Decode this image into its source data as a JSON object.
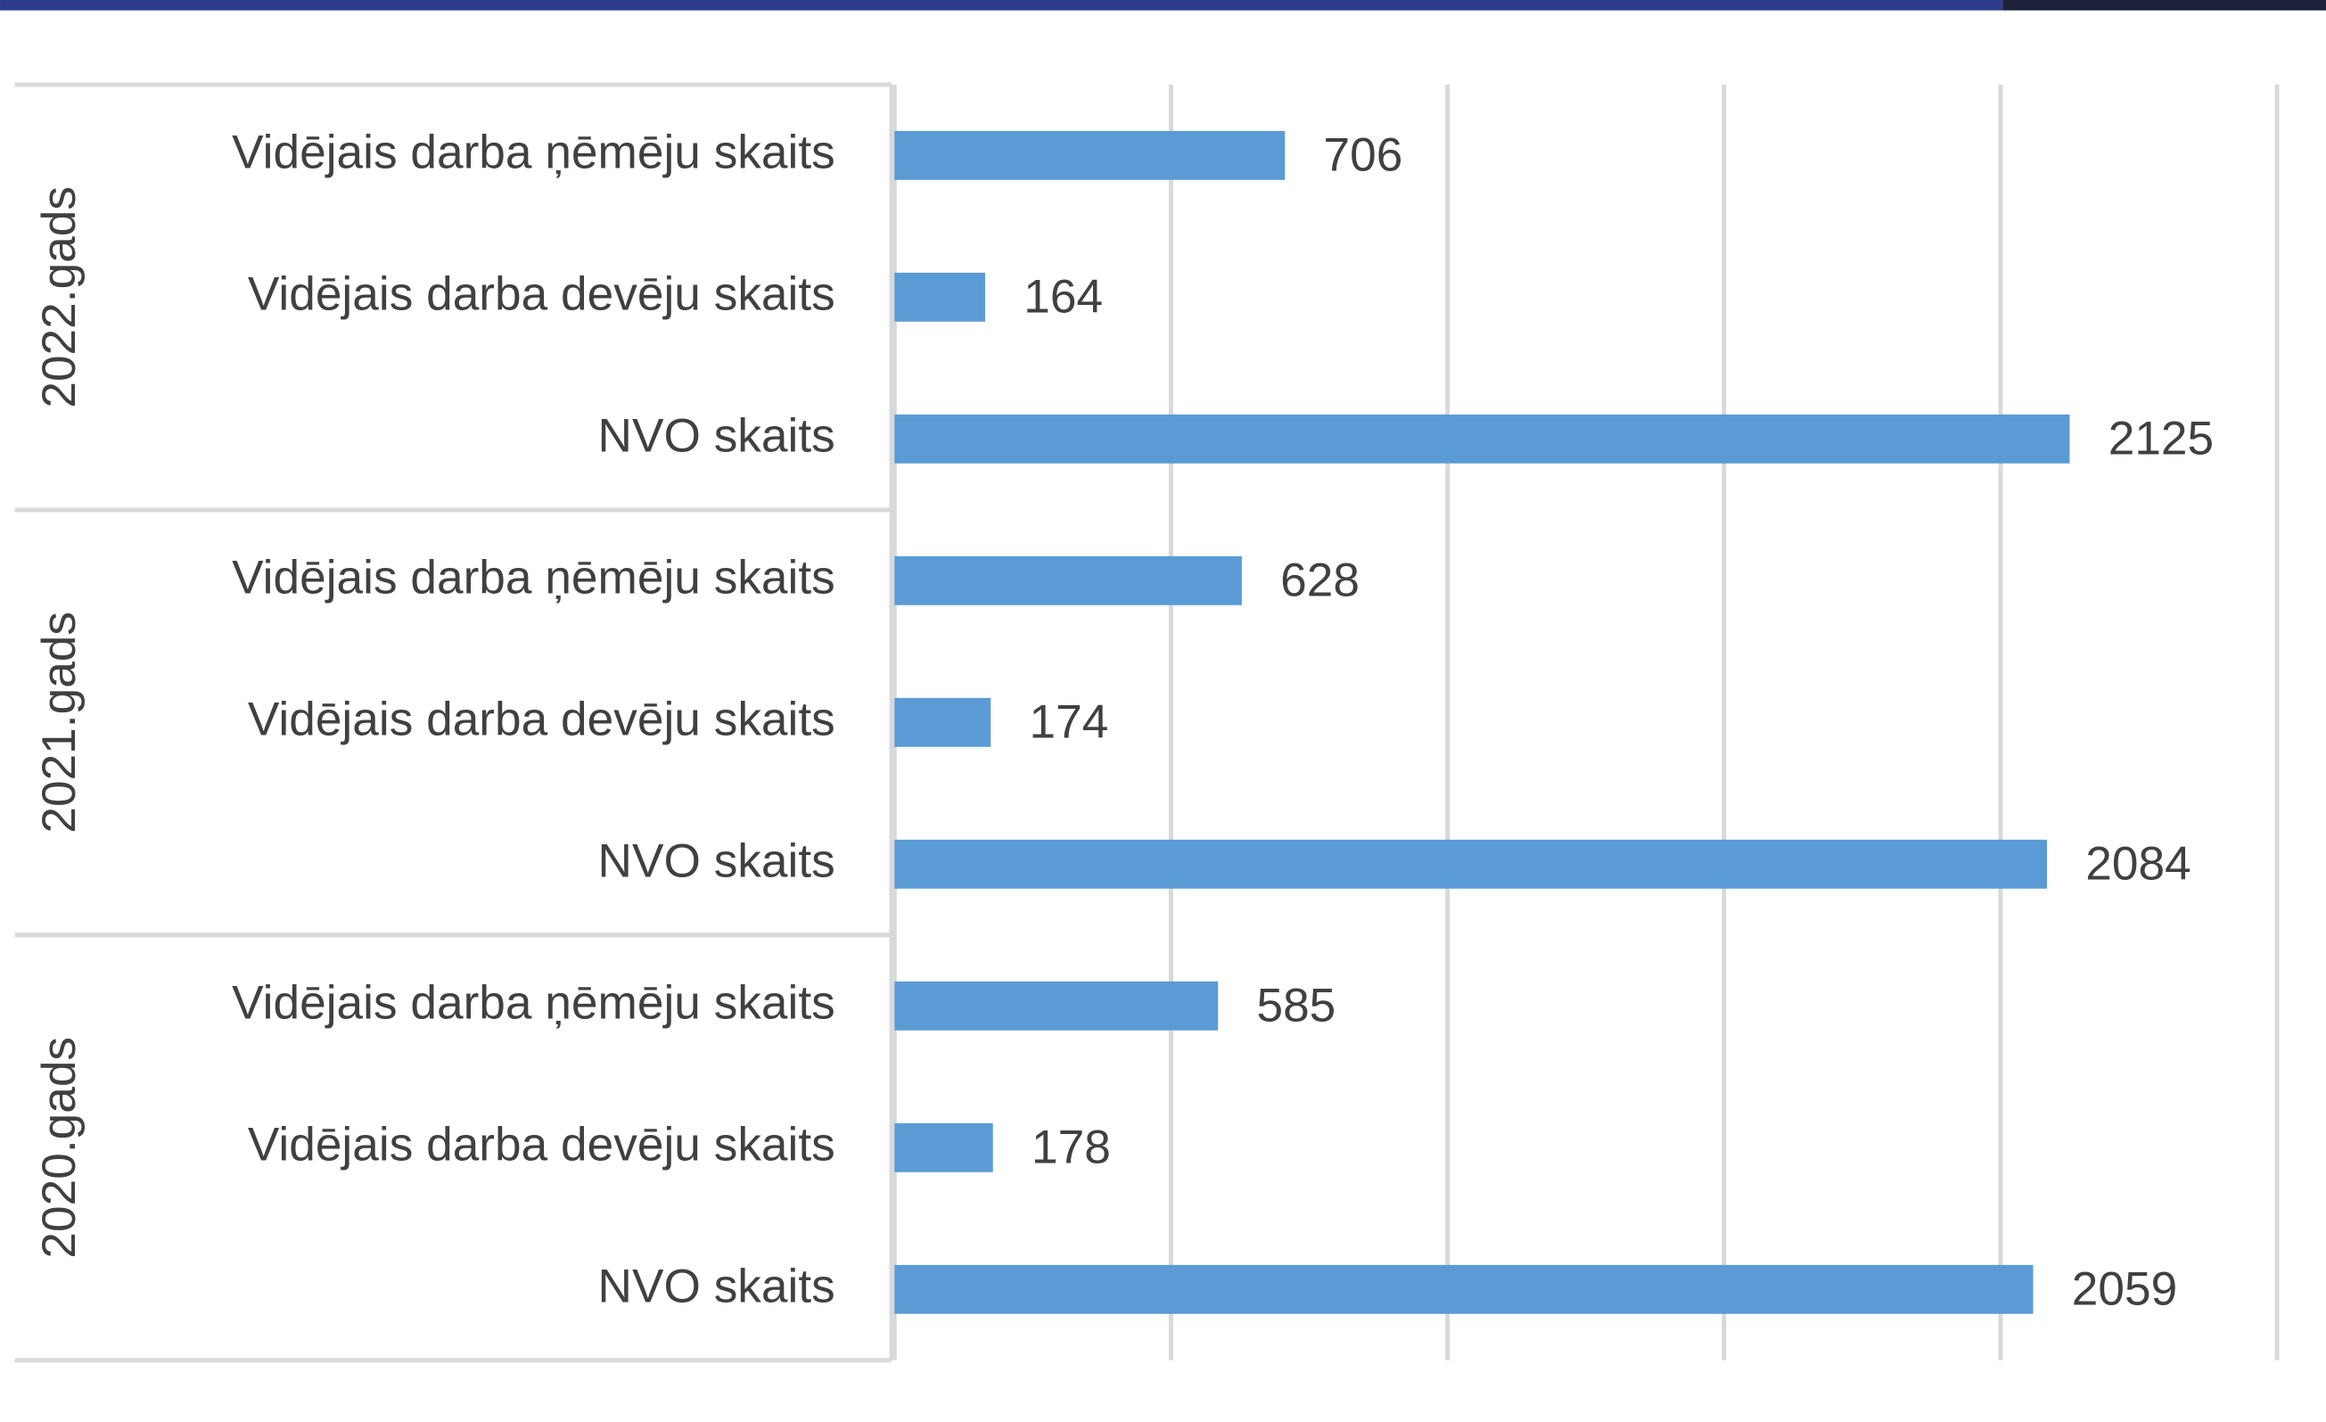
{
  "chart_data": {
    "type": "bar",
    "orientation": "horizontal",
    "color": "#5b9bd5",
    "groups": [
      {
        "name": "2022.gads",
        "categories": [
          "Vidējais darba ņēmēju skaits",
          "Vidējais darba devēju skaits",
          "NVO skaits"
        ],
        "values": [
          706,
          164,
          2125
        ]
      },
      {
        "name": "2021.gads",
        "categories": [
          "Vidējais darba ņēmēju skaits",
          "Vidējais darba devēju skaits",
          "NVO skaits"
        ],
        "values": [
          628,
          174,
          2084
        ]
      },
      {
        "name": "2020.gads",
        "categories": [
          "Vidējais darba ņēmēju skaits",
          "Vidējais darba devēju skaits",
          "NVO skaits"
        ],
        "values": [
          585,
          178,
          2059
        ]
      }
    ],
    "xlim": [
      0,
      2500
    ],
    "xticks": [
      0,
      500,
      1000,
      1500,
      2000,
      2500
    ],
    "grid": true
  }
}
